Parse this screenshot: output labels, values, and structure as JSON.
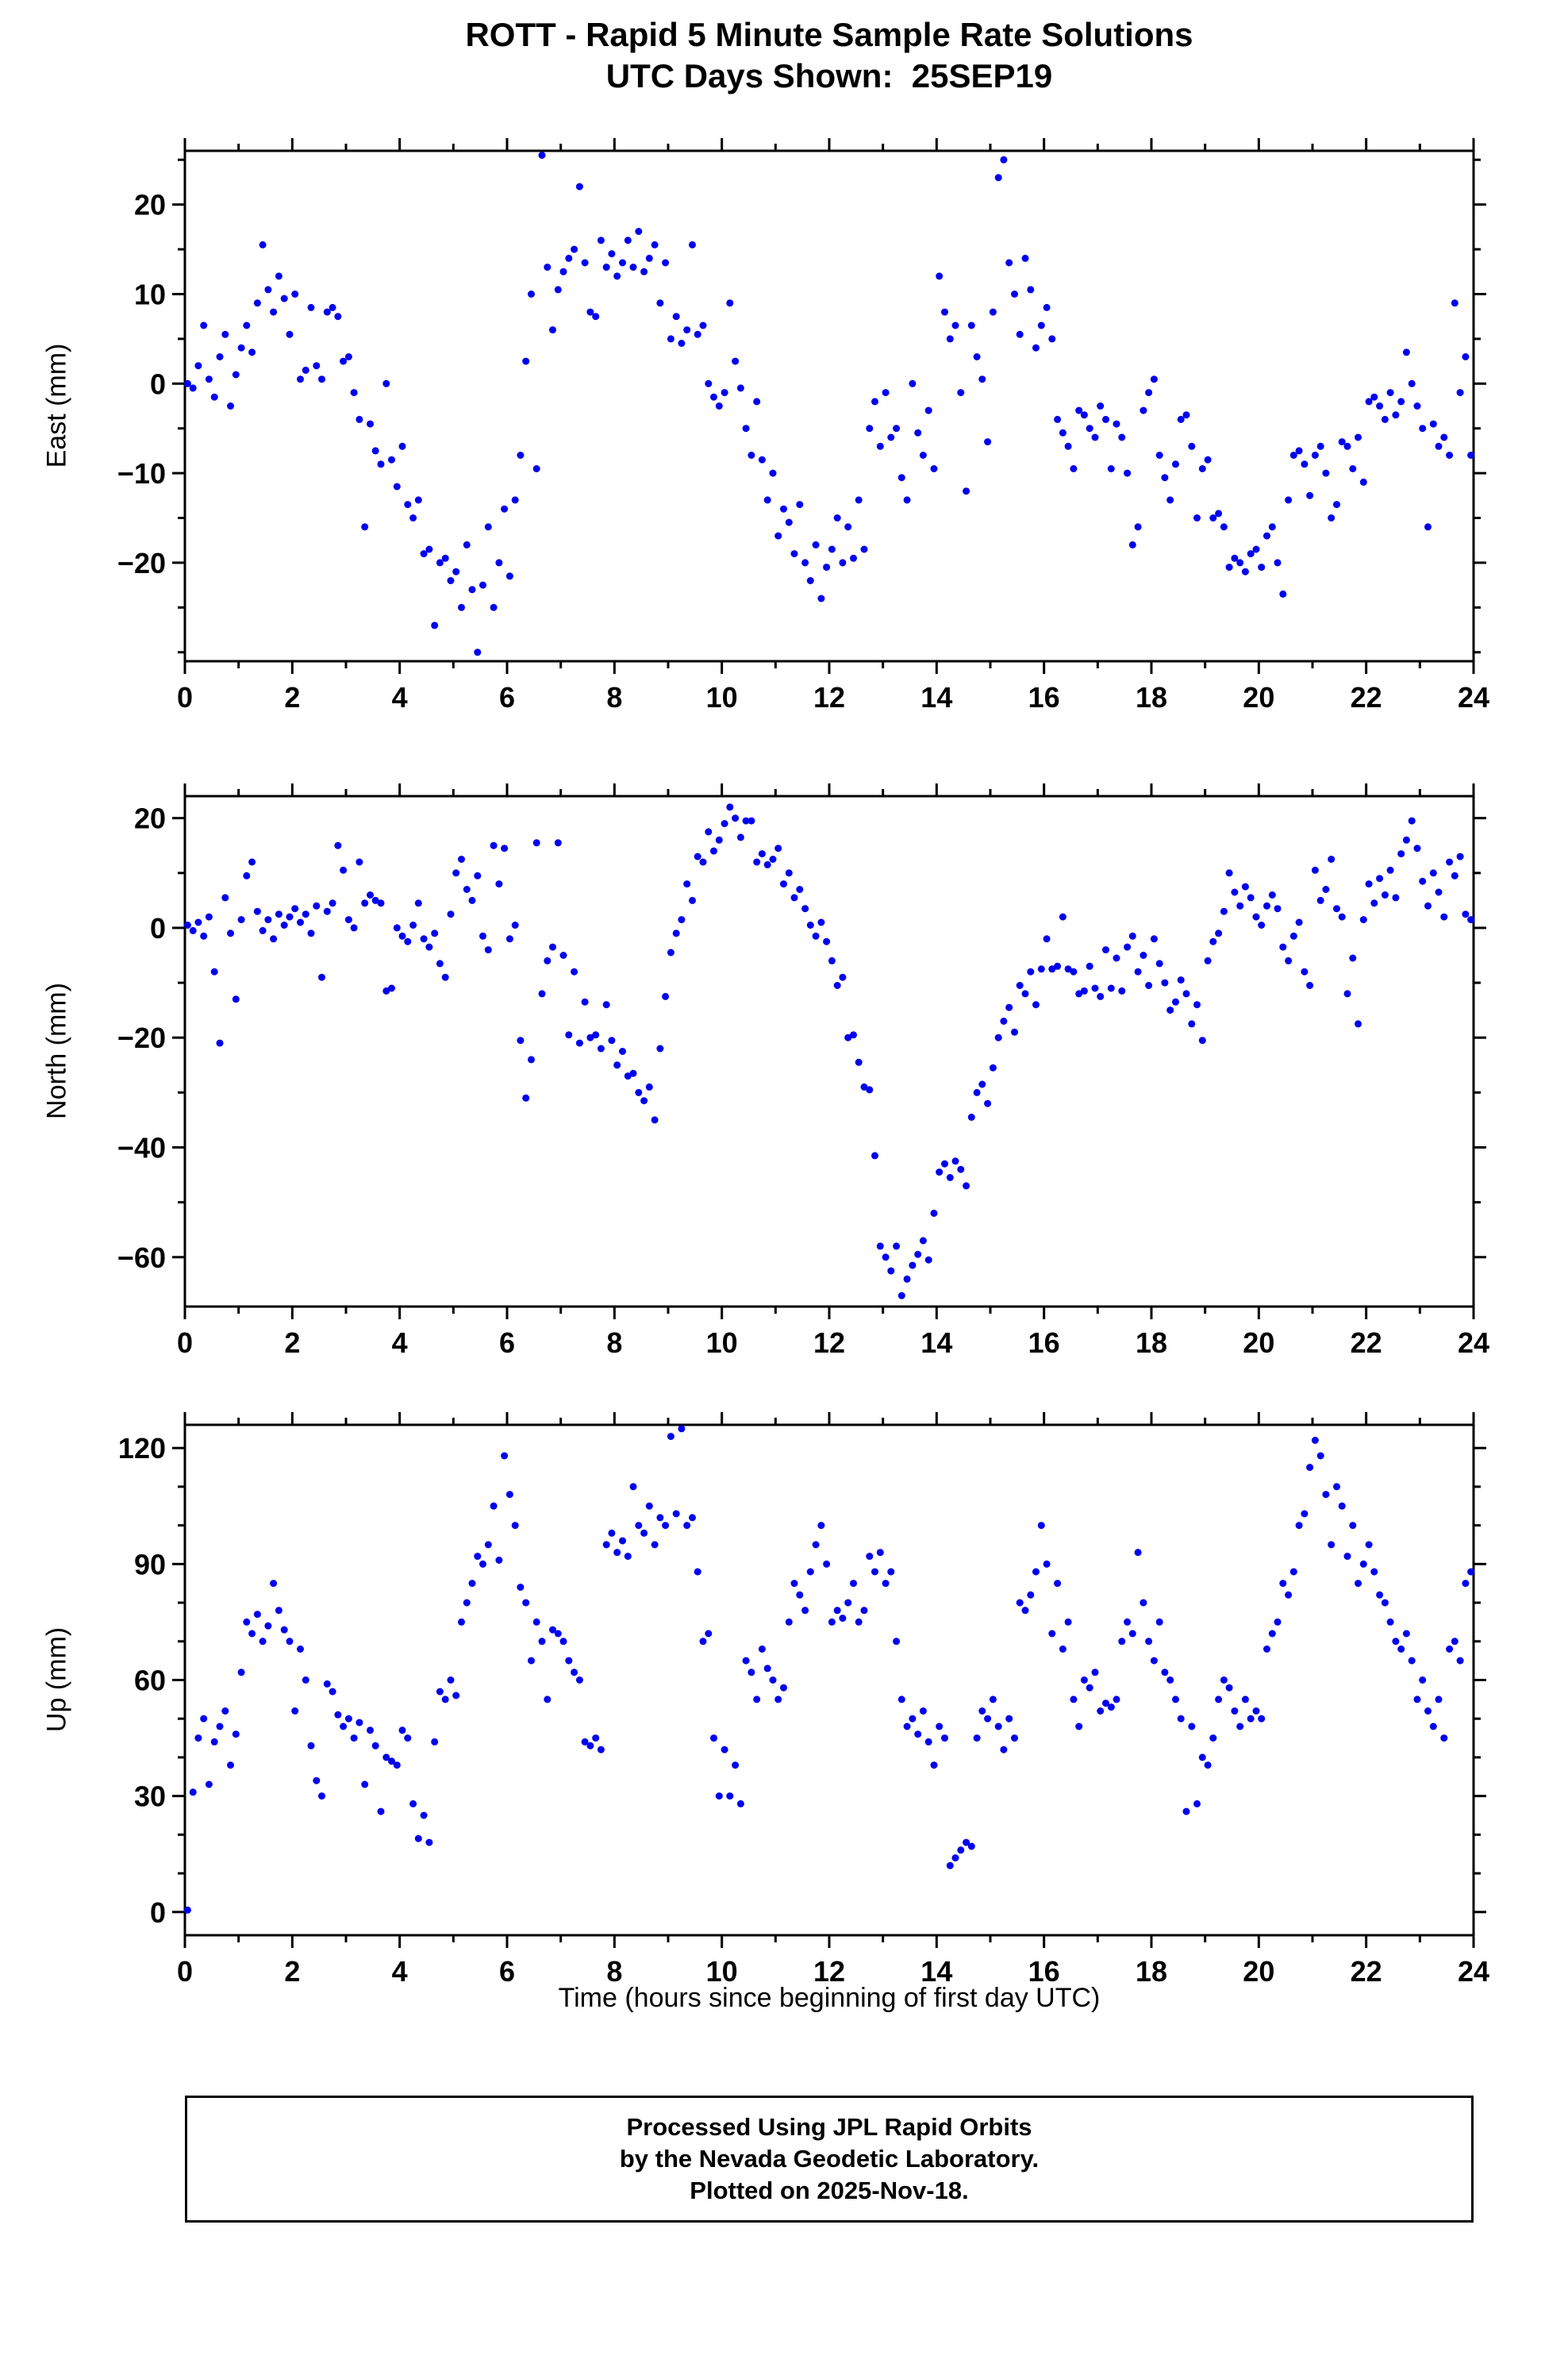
{
  "title": {
    "line1": "ROTT - Rapid 5 Minute Sample Rate Solutions",
    "line2": "UTC Days Shown:  25SEP19"
  },
  "xlabel": "Time (hours since beginning of first day UTC)",
  "footer": {
    "line1": "Processed Using JPL Rapid Orbits",
    "line2": "by the Nevada Geodetic Laboratory.",
    "line3": "Plotted on 2025-Nov-18."
  },
  "colors": {
    "dot": "#0000ee",
    "frame": "#000000"
  },
  "chart_data": [
    {
      "type": "scatter",
      "id": "east",
      "title": "",
      "ylabel": "East (mm)",
      "xlim": [
        0,
        24
      ],
      "ylim": [
        -31,
        26
      ],
      "xticks": [
        0,
        2,
        4,
        6,
        8,
        10,
        12,
        14,
        16,
        18,
        20,
        22,
        24
      ],
      "yticks": [
        -20,
        -10,
        0,
        10,
        20
      ],
      "x_minor_step": 1,
      "y_minor_step": 5,
      "x_start": 0.05,
      "x_step": 0.1,
      "values": [
        0,
        -0.5,
        2,
        6.5,
        0.5,
        -1.5,
        3,
        5.5,
        -2.5,
        1,
        4,
        6.5,
        3.5,
        9,
        15.5,
        10.5,
        8,
        12,
        9.5,
        5.5,
        10,
        0.5,
        1.5,
        8.5,
        2,
        0.5,
        8,
        8.5,
        7.5,
        2.5,
        3,
        -1,
        -4,
        -16,
        -4.5,
        -7.5,
        -9,
        0,
        -8.5,
        -11.5,
        -7,
        -13.5,
        -15,
        -13,
        -19,
        -18.5,
        -27,
        -20,
        -19.5,
        -22,
        -21,
        -25,
        -18,
        -23,
        -30,
        -22.5,
        -16,
        -25,
        -20,
        -14,
        -21.5,
        -13,
        -8,
        2.5,
        10,
        -9.5,
        25.5,
        13,
        6,
        10.5,
        12.5,
        14,
        15,
        22,
        13.5,
        8,
        7.5,
        16,
        13,
        14.5,
        12,
        13.5,
        16,
        13,
        17,
        12.5,
        14,
        15.5,
        9,
        13.5,
        5,
        7.5,
        4.5,
        6,
        15.5,
        5.5,
        6.5,
        0,
        -1.5,
        -2.5,
        -1,
        9,
        2.5,
        -0.5,
        -5,
        -8,
        -2,
        -8.5,
        -13,
        -10,
        -17,
        -14,
        -15.5,
        -19,
        -13.5,
        -20,
        -22,
        -18,
        -24,
        -20.5,
        -18.5,
        -15,
        -20,
        -16,
        -19.5,
        -13,
        -18.5,
        -5,
        -2,
        -7,
        -1,
        -6,
        -5,
        -10.5,
        -13,
        0,
        -5.5,
        -8,
        -3,
        -9.5,
        12,
        8,
        5,
        6.5,
        -1,
        -12,
        6.5,
        3,
        0.5,
        -6.5,
        8,
        23,
        25,
        13.5,
        10,
        5.5,
        14,
        10.5,
        4,
        6.5,
        8.5,
        5,
        -4,
        -5.5,
        -7,
        -9.5,
        -3,
        -3.5,
        -5,
        -6,
        -2.5,
        -4,
        -9.5,
        -4.5,
        -6,
        -10,
        -18,
        -16,
        -3,
        -1,
        0.5,
        -8,
        -10.5,
        -13,
        -9,
        -4,
        -3.5,
        -7,
        -15,
        -9.5,
        -8.5,
        -15,
        -14.5,
        -16,
        -20.5,
        -19.5,
        -20,
        -21,
        -19,
        -18.5,
        -20.5,
        -17,
        -16,
        -20,
        -23.5,
        -13,
        -8,
        -7.5,
        -9,
        -12.5,
        -8,
        -7,
        -10,
        -15,
        -13.5,
        -6.5,
        -7,
        -9.5,
        -6,
        -11,
        -2,
        -1.5,
        -2.5,
        -4,
        -1,
        -3.5,
        -2,
        3.5,
        0,
        -2.5,
        -5,
        -16,
        -4.5,
        -7,
        -6,
        -8,
        9,
        -1,
        3,
        -8
      ]
    },
    {
      "type": "scatter",
      "id": "north",
      "title": "",
      "ylabel": "North (mm)",
      "xlim": [
        0,
        24
      ],
      "ylim": [
        -69,
        24
      ],
      "xticks": [
        0,
        2,
        4,
        6,
        8,
        10,
        12,
        14,
        16,
        18,
        20,
        22,
        24
      ],
      "yticks": [
        -60,
        -40,
        -20,
        0,
        20
      ],
      "x_minor_step": 1,
      "y_minor_step": 10,
      "x_start": 0.05,
      "x_step": 0.1,
      "values": [
        0.5,
        -0.5,
        1,
        -1.5,
        2,
        -8,
        -21,
        5.5,
        -1,
        -13,
        1.5,
        9.5,
        12,
        3,
        -0.5,
        1.5,
        -2,
        2.5,
        0.5,
        2,
        3.5,
        1,
        2.5,
        -1,
        4,
        -9,
        3,
        4.5,
        15,
        10.5,
        1.5,
        0,
        12,
        4.5,
        6,
        5,
        4.5,
        -11.5,
        -11,
        0,
        -1.5,
        -2.5,
        0.5,
        4.5,
        -2,
        -3.5,
        -1,
        -6.5,
        -9,
        2.5,
        10,
        12.5,
        7,
        5,
        9.5,
        -1.5,
        -4,
        15,
        8,
        14.5,
        -2,
        0.5,
        -20.5,
        -31,
        -24,
        15.5,
        -12,
        -6,
        -3.5,
        15.5,
        -5,
        -19.5,
        -8,
        -21,
        -13.5,
        -20,
        -19.5,
        -22,
        -14,
        -20.5,
        -25,
        -22.5,
        -27,
        -26.5,
        -30,
        -31.5,
        -29,
        -35,
        -22,
        -12.5,
        -4.5,
        -1,
        1.5,
        8,
        5,
        13,
        12,
        17.5,
        14,
        16,
        19,
        22,
        20,
        16.5,
        19.5,
        19.5,
        12,
        13.5,
        11.5,
        12.5,
        14.5,
        8,
        10,
        5.5,
        7,
        3.5,
        0.5,
        -1.5,
        1,
        -2.5,
        -6,
        -10.5,
        -9,
        -20,
        -19.5,
        -24.5,
        -29,
        -29.5,
        -41.5,
        -58,
        -60,
        -62.5,
        -58,
        -67,
        -64,
        -61.5,
        -59.5,
        -57,
        -60.5,
        -52,
        -44.5,
        -43,
        -45.5,
        -42.5,
        -44,
        -47,
        -34.5,
        -30,
        -28.5,
        -32,
        -25.5,
        -20,
        -17,
        -14.5,
        -19,
        -10.5,
        -12,
        -8,
        -14,
        -7.5,
        -2,
        -7.5,
        -7,
        2,
        -7.5,
        -8,
        -12,
        -11.5,
        -7,
        -11,
        -12.5,
        -4,
        -11,
        -5.5,
        -11.5,
        -3.5,
        -1.5,
        -8,
        -5,
        -10.5,
        -2,
        -6.5,
        -10,
        -15,
        -13.5,
        -9.5,
        -12,
        -17.5,
        -14,
        -20.5,
        -6,
        -2.5,
        -1,
        3,
        10,
        6.5,
        4,
        7.5,
        5.5,
        2,
        0.5,
        4,
        6,
        3.5,
        -3.5,
        -6,
        -1.5,
        1,
        -8,
        -10.5,
        10.5,
        5,
        7,
        12.5,
        3.5,
        2,
        -12,
        -5.5,
        -17.5,
        1.5,
        8,
        4.5,
        9,
        6,
        10.5,
        5.5,
        13.5,
        16,
        19.5,
        14.5,
        8.5,
        4,
        10,
        6.5,
        2,
        12,
        9.5,
        13,
        2.5,
        1.5
      ]
    },
    {
      "type": "scatter",
      "id": "up",
      "title": "",
      "ylabel": "Up (mm)",
      "xlim": [
        0,
        24
      ],
      "ylim": [
        -6,
        126
      ],
      "xticks": [
        0,
        2,
        4,
        6,
        8,
        10,
        12,
        14,
        16,
        18,
        20,
        22,
        24
      ],
      "yticks": [
        0,
        30,
        60,
        90,
        120
      ],
      "x_minor_step": 1,
      "y_minor_step": 10,
      "x_start": 0.05,
      "x_step": 0.1,
      "values": [
        0.5,
        31,
        45,
        50,
        33,
        44,
        48,
        52,
        38,
        46,
        62,
        75,
        72,
        77,
        70,
        74,
        85,
        78,
        73,
        70,
        52,
        68,
        60,
        43,
        34,
        30,
        59,
        57,
        51,
        48,
        50,
        45,
        49,
        33,
        47,
        43,
        26,
        40,
        39,
        38,
        47,
        45,
        28,
        19,
        25,
        18,
        44,
        57,
        55,
        60,
        56,
        75,
        80,
        85,
        92,
        90,
        95,
        105,
        91,
        118,
        108,
        100,
        84,
        80,
        65,
        75,
        70,
        55,
        73,
        72,
        70,
        65,
        62,
        60,
        44,
        43,
        45,
        42,
        95,
        98,
        93,
        96,
        92,
        110,
        100,
        98,
        105,
        95,
        102,
        100,
        123,
        103,
        125,
        100,
        102,
        88,
        70,
        72,
        45,
        30,
        42,
        30,
        38,
        28,
        65,
        62,
        55,
        68,
        63,
        60,
        55,
        58,
        75,
        85,
        82,
        78,
        88,
        95,
        100,
        90,
        75,
        78,
        76,
        80,
        85,
        75,
        78,
        92,
        88,
        93,
        85,
        88,
        70,
        55,
        48,
        50,
        46,
        52,
        44,
        38,
        48,
        45,
        12,
        14,
        16,
        18,
        17,
        45,
        52,
        50,
        55,
        48,
        42,
        50,
        45,
        80,
        78,
        82,
        88,
        100,
        90,
        72,
        85,
        68,
        75,
        55,
        48,
        60,
        58,
        62,
        52,
        54,
        53,
        55,
        70,
        75,
        72,
        93,
        80,
        70,
        65,
        75,
        62,
        60,
        55,
        50,
        26,
        48,
        28,
        40,
        38,
        45,
        55,
        60,
        58,
        52,
        48,
        55,
        50,
        52,
        50,
        68,
        72,
        75,
        85,
        82,
        88,
        100,
        103,
        115,
        122,
        118,
        108,
        95,
        110,
        105,
        92,
        100,
        85,
        90,
        95,
        88,
        82,
        80,
        75,
        70,
        68,
        72,
        65,
        55,
        60,
        52,
        48,
        55,
        45,
        68,
        70,
        65,
        85,
        88
      ]
    }
  ]
}
